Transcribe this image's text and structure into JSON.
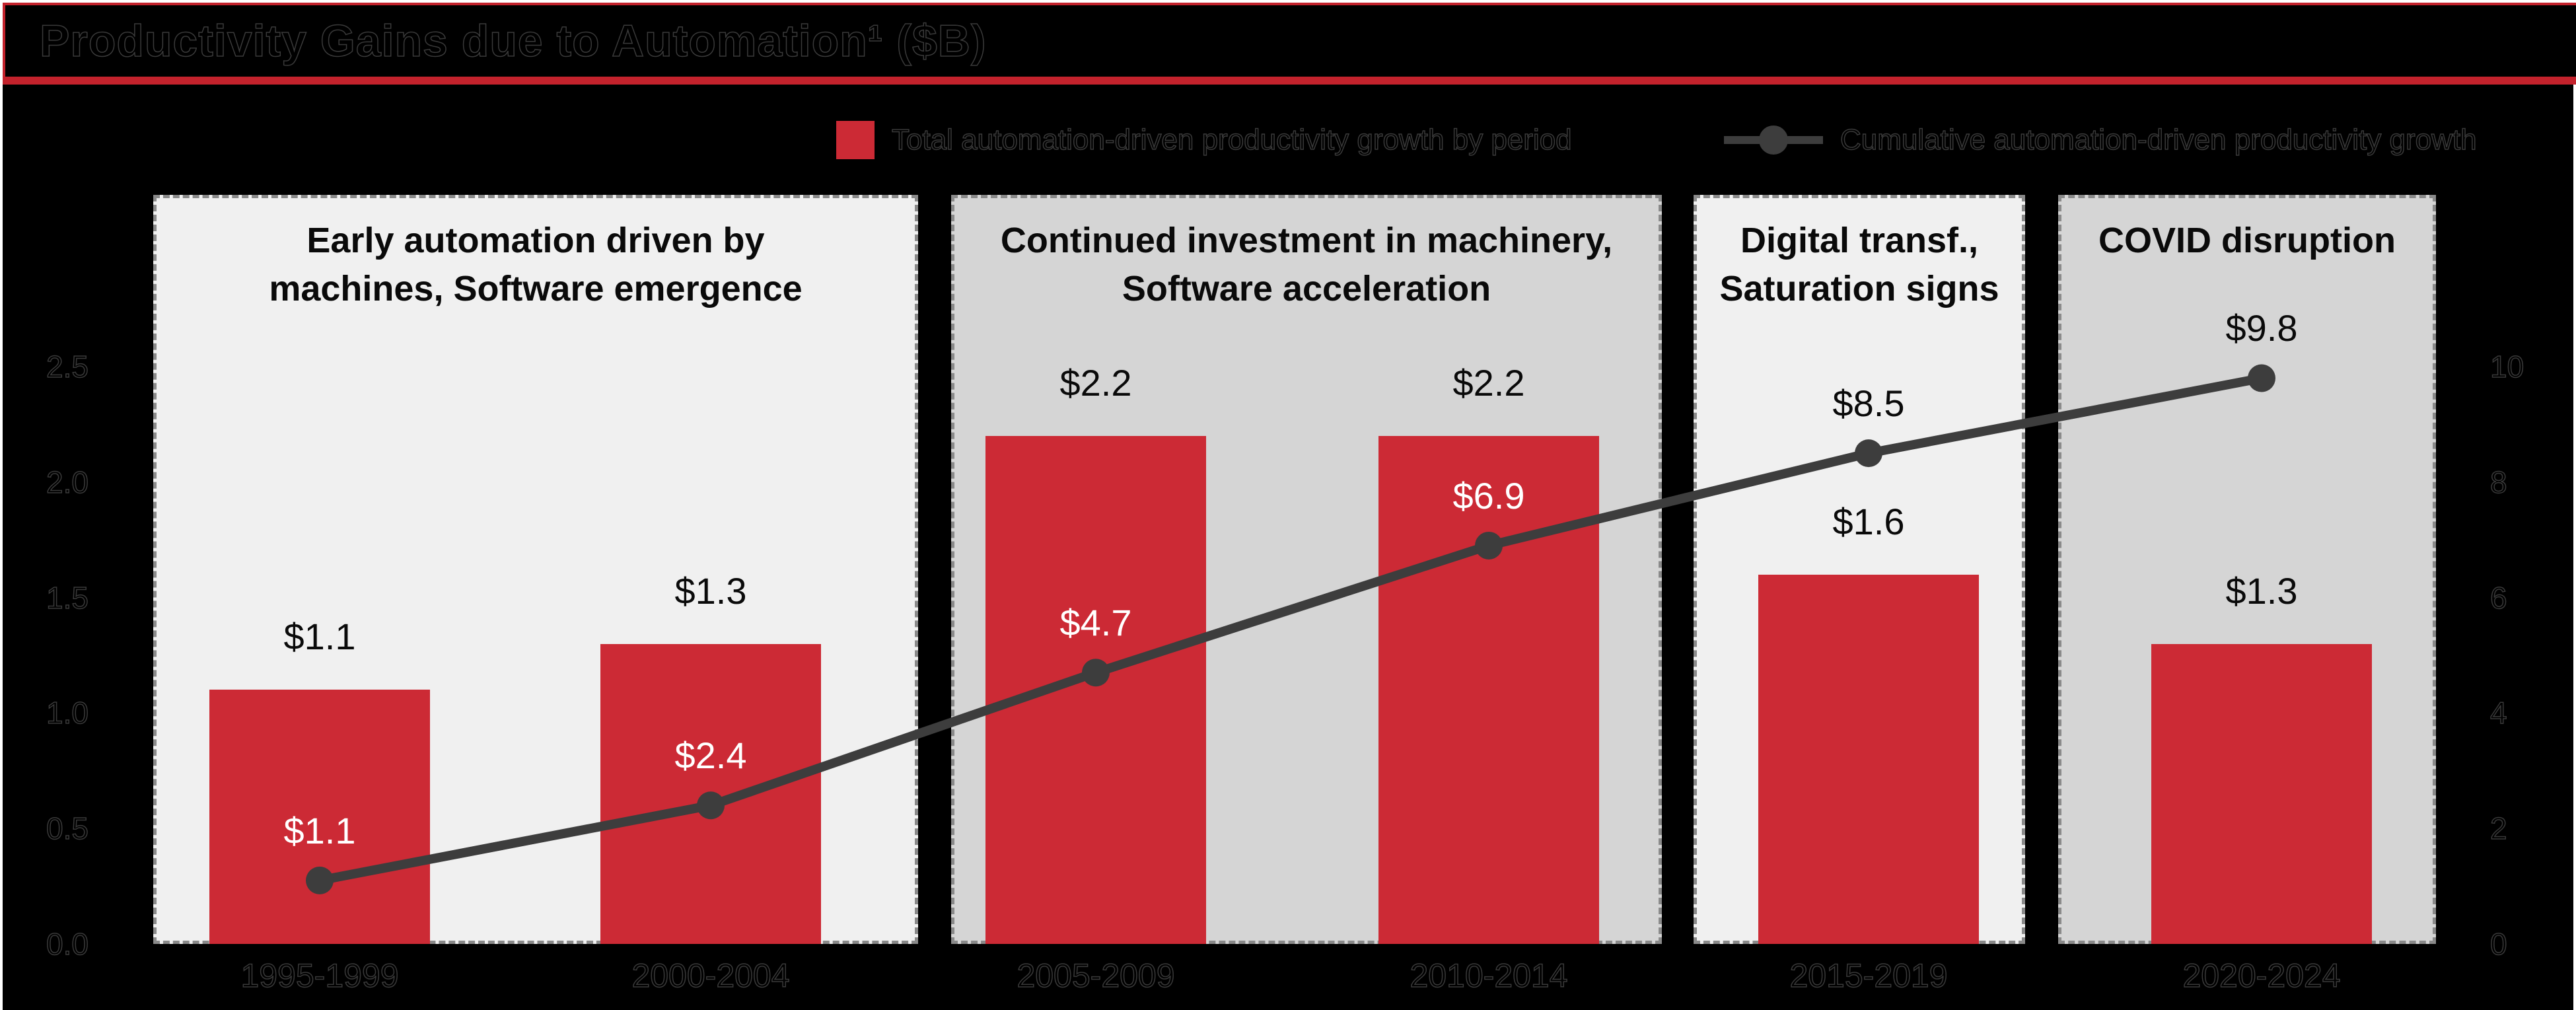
{
  "title": {
    "text": "Productivity Gains due to Automation¹ ($B)"
  },
  "legend": {
    "items": [
      {
        "label": "Total automation-driven productivity growth by period",
        "marker": "red-square"
      },
      {
        "label": "Cumulative automation-driven productivity growth",
        "marker": "gray-line-dot"
      }
    ],
    "position": "top"
  },
  "panels": [
    {
      "annotation": "Early automation driven by\nmachines, Software emergence",
      "shade": "light",
      "periods": [
        "1995-1999",
        "2000-2004"
      ]
    },
    {
      "annotation": "Continued investment in machinery,\nSoftware acceleration",
      "shade": "dark",
      "periods": [
        "2005-2009",
        "2010-2014"
      ]
    },
    {
      "annotation": "Digital transf.,\nSaturation signs",
      "shade": "light",
      "periods": [
        "2015-2019"
      ]
    },
    {
      "annotation": "COVID disruption",
      "shade": "dark",
      "periods": [
        "2020-2024"
      ]
    }
  ],
  "colors": {
    "background": "#000000",
    "page_edge": "#ffffff",
    "title_border_red": "#c3222c",
    "bar_red": "#cc2a35",
    "line_gray": "#3d3d3d",
    "panel_light": "#f0f0f0",
    "panel_dark": "#d5d5d5",
    "label_black": "#0a0a0a",
    "label_white": "#ffffff"
  },
  "chart_data": {
    "type": "bar",
    "subtype": "bar-line-combo",
    "title": "Productivity Gains due to Automation¹ ($B)",
    "categories": [
      "1995-1999",
      "2000-2004",
      "2005-2009",
      "2010-2014",
      "2015-2019",
      "2020-2024"
    ],
    "series": [
      {
        "name": "Total automation-driven productivity growth by period",
        "type": "bar",
        "axis": "left",
        "values": [
          1.1,
          1.3,
          2.2,
          2.2,
          1.6,
          1.3
        ],
        "labels": [
          "$1.1",
          "$1.3",
          "$2.2",
          "$2.2",
          "$1.6",
          "$1.3"
        ]
      },
      {
        "name": "Cumulative automation-driven productivity growth",
        "type": "line",
        "axis": "right",
        "values": [
          1.1,
          2.4,
          4.7,
          6.9,
          8.5,
          9.8
        ],
        "labels": [
          "$1.1",
          "$2.4",
          "$4.7",
          "$6.9",
          "$8.5",
          "$9.8"
        ]
      }
    ],
    "axes": {
      "left": {
        "ticks": [
          "2.5",
          "2.0",
          "1.5",
          "1.0",
          "0.5",
          "0.0"
        ],
        "range": [
          0,
          2.5
        ]
      },
      "right": {
        "ticks": [
          "10",
          "8",
          "6",
          "4",
          "2",
          "0"
        ],
        "range": [
          0,
          10
        ]
      }
    },
    "grid": false,
    "legend_position": "top",
    "xlabel": "",
    "ylabel": ""
  }
}
